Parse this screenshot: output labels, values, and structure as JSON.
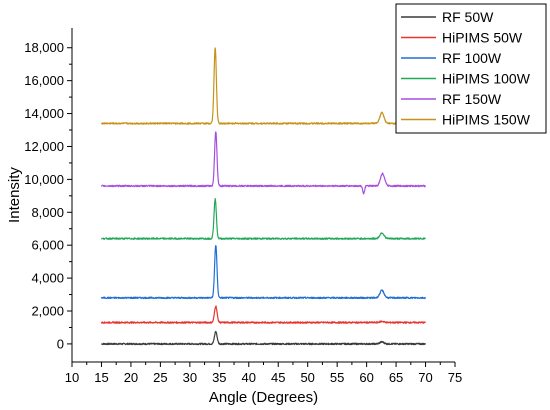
{
  "chart_data": {
    "type": "line",
    "title": "",
    "xlabel": "Angle (Degrees)",
    "ylabel": "Intensity",
    "xlim": [
      10,
      75
    ],
    "ylim": [
      -1100,
      19200
    ],
    "x_ticks": [
      10,
      15,
      20,
      25,
      30,
      35,
      40,
      45,
      50,
      55,
      60,
      65,
      70,
      75
    ],
    "x_tick_labels": [
      "10",
      "15",
      "20",
      "25",
      "30",
      "35",
      "40",
      "45",
      "50",
      "55",
      "60",
      "65",
      "70",
      "75"
    ],
    "y_ticks": [
      0,
      2000,
      4000,
      6000,
      8000,
      10000,
      12000,
      14000,
      16000,
      18000
    ],
    "y_tick_labels": [
      "0",
      "2,000",
      "4,000",
      "6,000",
      "8,000",
      "10,000",
      "12,000",
      "14,000",
      "16,000",
      "18,000"
    ],
    "grid": false,
    "legend_position": "top-right",
    "x_range": [
      15,
      70
    ],
    "series": [
      {
        "name": "RF 50W",
        "color": "#3a3a3a",
        "baseline": 0,
        "peaks": [
          {
            "x": 34.4,
            "height": 750,
            "width": 0.22
          },
          {
            "x": 62.6,
            "height": 120,
            "width": 0.35
          }
        ],
        "dips": []
      },
      {
        "name": "HiPIMS 50W",
        "color": "#e8332e",
        "baseline": 1300,
        "peaks": [
          {
            "x": 34.4,
            "height": 1000,
            "width": 0.22
          },
          {
            "x": 62.6,
            "height": 70,
            "width": 0.35
          }
        ],
        "dips": []
      },
      {
        "name": "RF 100W",
        "color": "#1f6fd6",
        "baseline": 2800,
        "peaks": [
          {
            "x": 34.4,
            "height": 3200,
            "width": 0.2
          },
          {
            "x": 62.6,
            "height": 450,
            "width": 0.35
          }
        ],
        "dips": []
      },
      {
        "name": "HiPIMS 100W",
        "color": "#22a85a",
        "baseline": 6400,
        "peaks": [
          {
            "x": 34.3,
            "height": 2400,
            "width": 0.2
          },
          {
            "x": 62.6,
            "height": 350,
            "width": 0.35
          }
        ],
        "dips": []
      },
      {
        "name": "RF 150W",
        "color": "#a64ee0",
        "baseline": 9600,
        "peaks": [
          {
            "x": 34.4,
            "height": 3300,
            "width": 0.2
          },
          {
            "x": 62.7,
            "height": 750,
            "width": 0.35
          }
        ],
        "dips": [
          {
            "x": 59.5,
            "depth": 500,
            "width": 0.15
          }
        ]
      },
      {
        "name": "HiPIMS 150W",
        "color": "#c8921a",
        "baseline": 13400,
        "peaks": [
          {
            "x": 34.3,
            "height": 4600,
            "width": 0.2
          },
          {
            "x": 62.6,
            "height": 650,
            "width": 0.35
          }
        ],
        "dips": []
      }
    ]
  }
}
